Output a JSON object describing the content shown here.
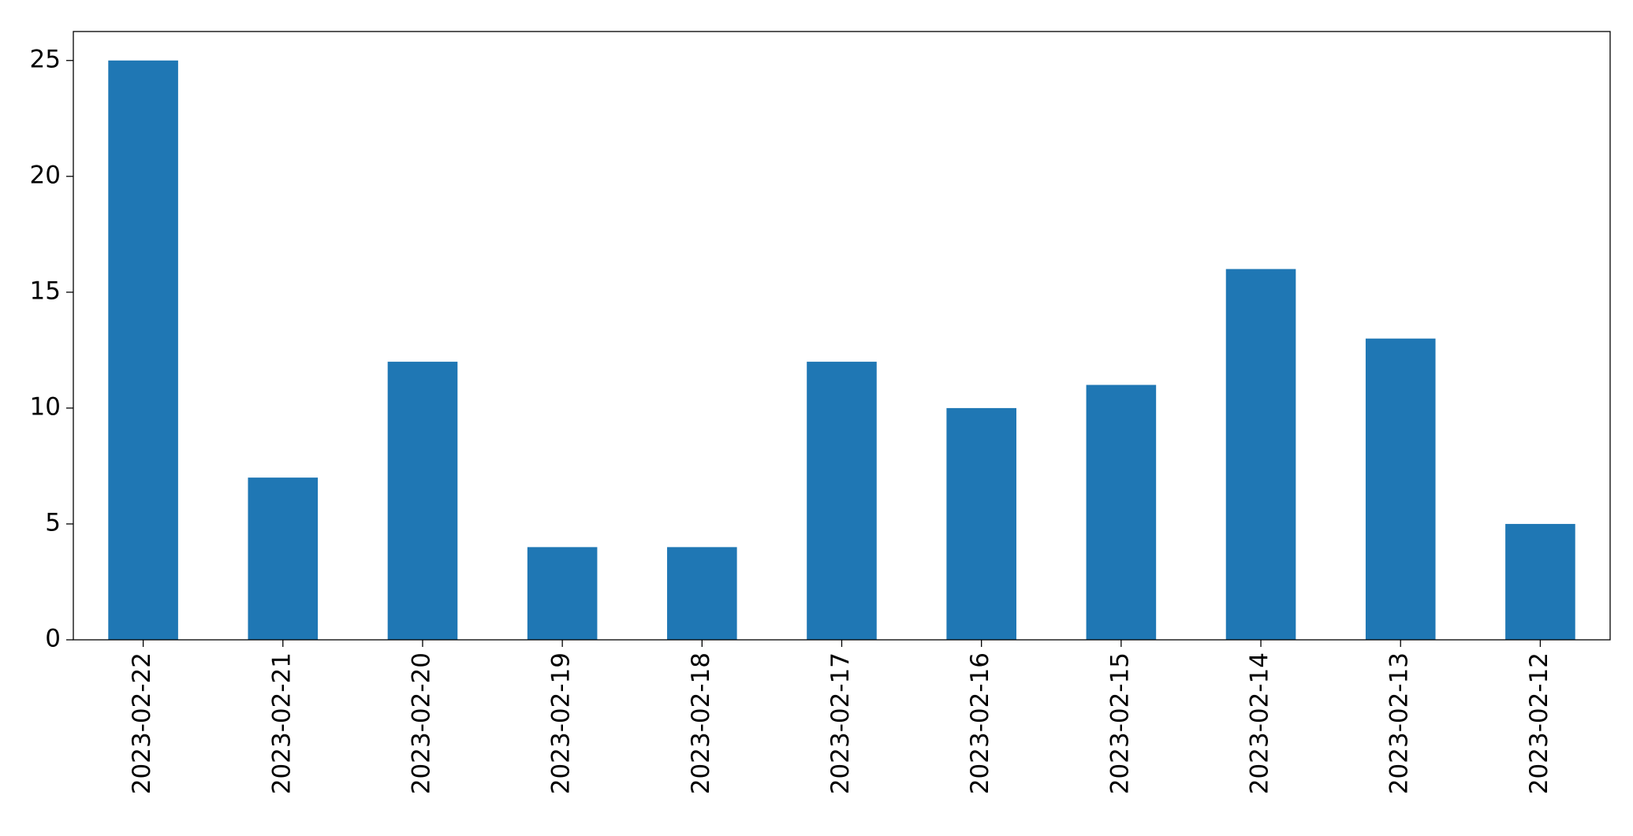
{
  "chart_data": {
    "type": "bar",
    "categories": [
      "2023-02-22",
      "2023-02-21",
      "2023-02-20",
      "2023-02-19",
      "2023-02-18",
      "2023-02-17",
      "2023-02-16",
      "2023-02-15",
      "2023-02-14",
      "2023-02-13",
      "2023-02-12"
    ],
    "values": [
      25,
      7,
      12,
      4,
      4,
      12,
      10,
      11,
      16,
      13,
      5
    ],
    "color": "#1f77b4",
    "ylim": [
      0,
      26.25
    ],
    "yticks": [
      0,
      5,
      10,
      15,
      20,
      25
    ],
    "grid": false
  }
}
